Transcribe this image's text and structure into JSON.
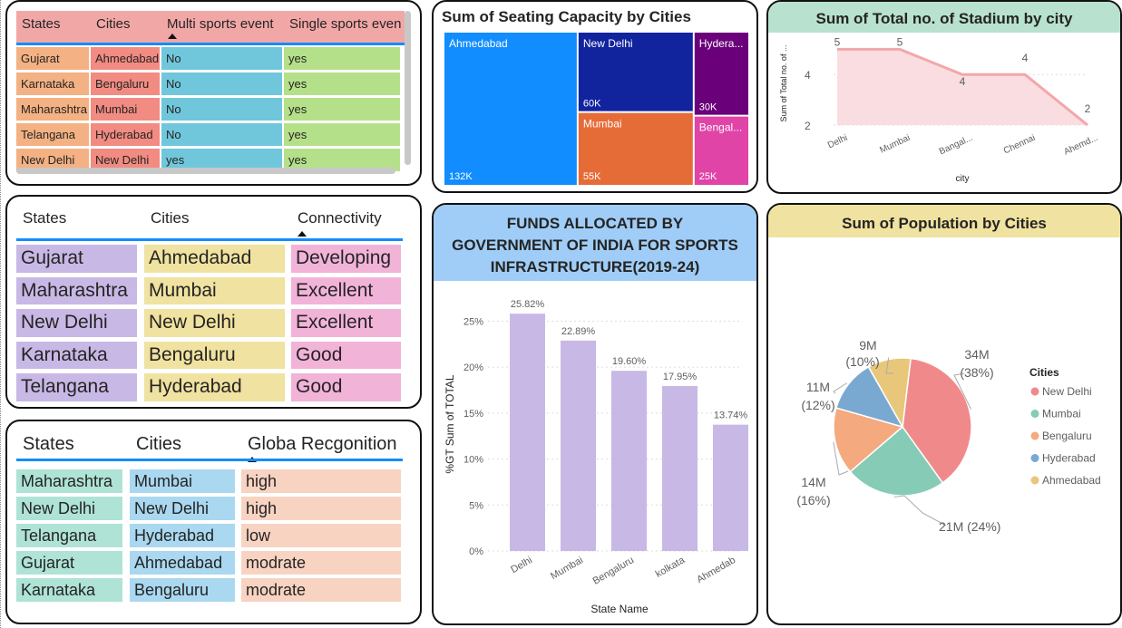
{
  "table1": {
    "headers": [
      "States",
      "Cities",
      "Multi sports event",
      "Single sports even"
    ],
    "rows": [
      [
        "Gujarat",
        "Ahmedabad",
        "No",
        "yes"
      ],
      [
        "Karnataka",
        "Bengaluru",
        "No",
        "yes"
      ],
      [
        "Maharashtra",
        "Mumbai",
        "No",
        "yes"
      ],
      [
        "Telangana",
        "Hyderabad",
        "No",
        "yes"
      ],
      [
        "New Delhi",
        "New Delhi",
        "yes",
        "yes"
      ]
    ],
    "colors": [
      "#F4B183",
      "#F28B82",
      "#70C7DC",
      "#B5E08A"
    ],
    "header_bg": "#F2A7A7"
  },
  "table2": {
    "headers": [
      "States",
      "Cities",
      "Connectivity"
    ],
    "rows": [
      [
        "Gujarat",
        "Ahmedabad",
        "Developing"
      ],
      [
        "Maharashtra",
        "Mumbai",
        "Excellent"
      ],
      [
        "New Delhi",
        "New Delhi",
        "Excellent"
      ],
      [
        "Karnataka",
        "Bengaluru",
        "Good"
      ],
      [
        "Telangana",
        "Hyderabad",
        "Good"
      ]
    ],
    "colors": [
      "#C8B8E6",
      "#F0E2A0",
      "#F2B3D9"
    ]
  },
  "table3": {
    "headers": [
      "States",
      "Cities",
      "Globa Recgonition"
    ],
    "rows": [
      [
        "Maharashtra",
        "Mumbai",
        "high"
      ],
      [
        "New Delhi",
        "New Delhi",
        "high"
      ],
      [
        "Telangana",
        "Hyderabad",
        "low"
      ],
      [
        "Gujarat",
        "Ahmedabad",
        "modrate"
      ],
      [
        "Karnataka",
        "Bengaluru",
        "modrate"
      ]
    ],
    "colors": [
      "#AEE3D6",
      "#A9D8F0",
      "#F8D3C2"
    ]
  },
  "treemap": {
    "title": "Sum of Seating Capacity by Cities",
    "chart_data": {
      "type": "treemap",
      "items": [
        {
          "label": "Ahmedabad",
          "value_label": "132K",
          "value": 132000,
          "color": "#118DFF"
        },
        {
          "label": "New Delhi",
          "value_label": "60K",
          "value": 60000,
          "color": "#12239E"
        },
        {
          "label": "Mumbai",
          "value_label": "55K",
          "value": 55000,
          "color": "#E66C37"
        },
        {
          "label": "Hydera...",
          "value_label": "30K",
          "value": 30000,
          "color": "#6B007B"
        },
        {
          "label": "Bengal...",
          "value_label": "25K",
          "value": 25000,
          "color": "#E044A7"
        }
      ]
    }
  },
  "area": {
    "title": "Sum of Total no. of Stadium by city",
    "header_bg": "#B8E2CF",
    "chart_data": {
      "type": "area",
      "x": [
        "Delhi",
        "Mumbai",
        "Bangal...",
        "Chennai",
        "Ahemd..."
      ],
      "values": [
        5,
        5,
        4,
        4,
        2
      ],
      "xlabel": "city",
      "ylabel": "Sum of Total no. of ...",
      "yticks": [
        2,
        4
      ],
      "color": "#F2A7AA"
    }
  },
  "bar": {
    "title": "FUNDS ALLOCATED BY GOVERNMENT OF INDIA FOR SPORTS INFRASTRUCTURE(2019-24)",
    "header_bg": "#9FCDF7",
    "chart_data": {
      "type": "bar",
      "categories": [
        "Delhi",
        "Mumbai",
        "Bengaluru",
        "kolkata",
        "Ahmedab"
      ],
      "values": [
        25.82,
        22.89,
        19.6,
        17.95,
        13.74
      ],
      "value_labels": [
        "25.82%",
        "22.89%",
        "19.60%",
        "17.95%",
        "13.74%"
      ],
      "xlabel": "State Name",
      "ylabel": "%GT Sum of TOTAL",
      "yticks": [
        "0%",
        "5%",
        "10%",
        "15%",
        "20%",
        "25%"
      ],
      "ylim": [
        0,
        28
      ],
      "color": "#C8B8E6"
    }
  },
  "pie": {
    "title": "Sum of Population by Cities",
    "header_bg": "#F0E2A0",
    "legend_title": "Cities",
    "chart_data": {
      "type": "pie",
      "labels": [
        "New Delhi",
        "Mumbai",
        "Bengaluru",
        "Hyderabad",
        "Ahmedabad"
      ],
      "values": [
        34,
        21,
        14,
        11,
        9
      ],
      "value_labels": [
        "34M",
        "21M",
        "14M",
        "11M",
        "9M"
      ],
      "percent_labels": [
        "(38%)",
        "(24%)",
        "(16%)",
        "(12%)",
        "(10%)"
      ],
      "colors": [
        "#F08A8A",
        "#86CBB6",
        "#F4A97F",
        "#79A9D1",
        "#E8C77A"
      ]
    }
  }
}
